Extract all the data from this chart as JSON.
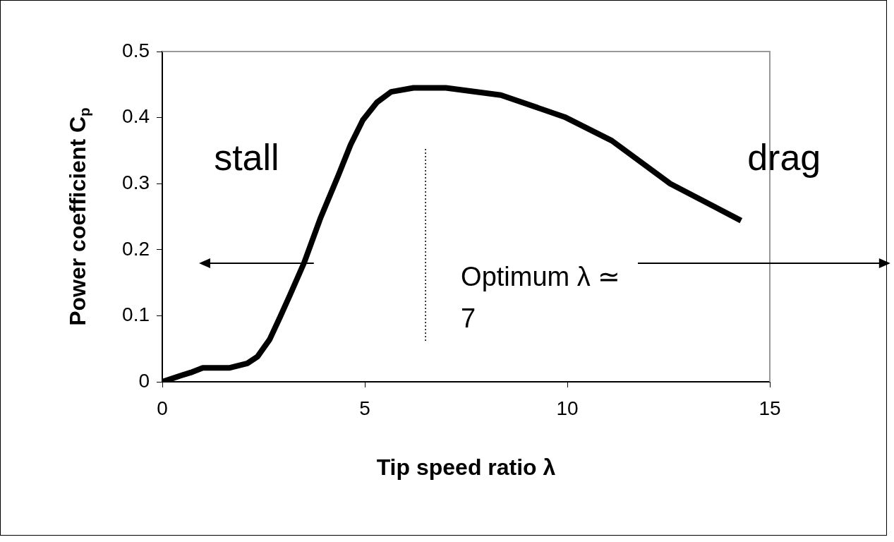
{
  "chart_data": {
    "type": "line",
    "xlabel": "Tip speed ratio λ",
    "ylabel": "Power coefficient C$_{p}$",
    "x": [
      0,
      0.44,
      0.7,
      1.0,
      1.65,
      2.1,
      2.35,
      2.65,
      2.9,
      3.15,
      3.5,
      3.9,
      4.35,
      4.65,
      4.95,
      5.3,
      5.65,
      6.2,
      7.0,
      8.36,
      9.93,
      11.1,
      12.54,
      14.29
    ],
    "series": [
      {
        "color": "#000000",
        "values": [
          0,
          0.009,
          0.014,
          0.021,
          0.021,
          0.028,
          0.038,
          0.064,
          0.097,
          0.131,
          0.18,
          0.247,
          0.313,
          0.359,
          0.396,
          0.423,
          0.439,
          0.445,
          0.445,
          0.434,
          0.401,
          0.365,
          0.3,
          0.244
        ]
      }
    ],
    "xlim": [
      0,
      15
    ],
    "xticks": [
      0,
      5,
      10,
      15
    ],
    "ylim": [
      0,
      0.5
    ],
    "yticks": [
      0,
      0.1,
      0.2,
      0.3,
      0.4,
      0.5
    ],
    "marker": "none",
    "line_style": "solid",
    "ref_lines": [
      {
        "axis": "x",
        "value": 6.5,
        "label": "Optimum λ ≃ 7",
        "color": "#000000",
        "line_style": "dotted"
      }
    ],
    "annotations": [
      "stall",
      "drag"
    ]
  }
}
